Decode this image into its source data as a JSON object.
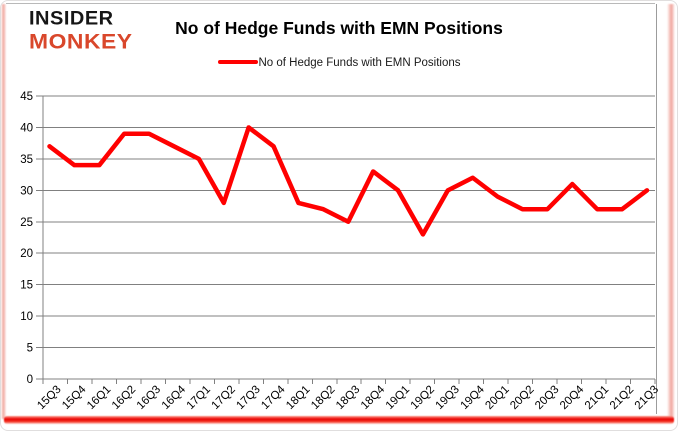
{
  "logo": {
    "line1": "INSIDER",
    "line2": "MONKEY"
  },
  "header": {
    "title": "No of Hedge Funds with EMN Positions"
  },
  "legend": {
    "label": "No of Hedge Funds with EMN Positions"
  },
  "colors": {
    "line": "#FF0000",
    "logo_red": "#D9472B",
    "gridline": "#808080",
    "axis_text": "#000000",
    "border_red": "#E90000",
    "border_pink": "#F0A49B"
  },
  "chart_data": {
    "type": "line",
    "title": "No of Hedge Funds with EMN Positions",
    "categories": [
      "15Q3",
      "15Q4",
      "16Q1",
      "16Q2",
      "16Q3",
      "16Q4",
      "17Q1",
      "17Q2",
      "17Q3",
      "17Q4",
      "18Q1",
      "18Q2",
      "18Q3",
      "18Q4",
      "19Q1",
      "19Q2",
      "19Q3",
      "19Q4",
      "20Q1",
      "20Q2",
      "20Q3",
      "20Q4",
      "21Q1",
      "21Q2",
      "21Q3"
    ],
    "values": [
      37,
      34,
      34,
      39,
      39,
      37,
      35,
      28,
      40,
      37,
      28,
      27,
      25,
      33,
      30,
      23,
      30,
      32,
      29,
      27,
      27,
      31,
      27,
      27,
      30
    ],
    "xlabel": "",
    "ylabel": "",
    "ylim": [
      0,
      45
    ],
    "ytick_step": 5,
    "yticks": [
      0,
      5,
      10,
      15,
      20,
      25,
      30,
      35,
      40,
      45
    ],
    "grid": true,
    "legend_position": "top-center",
    "series_name": "No of Hedge Funds with EMN Positions"
  }
}
